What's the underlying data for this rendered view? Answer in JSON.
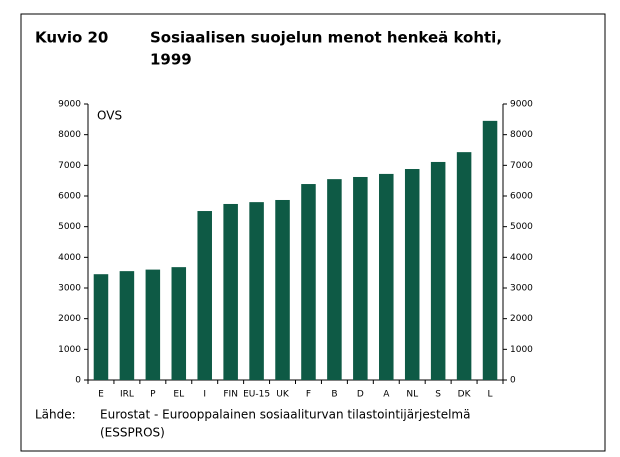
{
  "chart_data": {
    "type": "bar",
    "figure_label": "Kuvio 20",
    "title": [
      "Sosiaalisen suojelun menot henkeä kohti,",
      "1999"
    ],
    "y_label": "OVS",
    "categories": [
      "E",
      "IRL",
      "P",
      "EL",
      "I",
      "FIN",
      "EU-15",
      "UK",
      "F",
      "B",
      "D",
      "A",
      "NL",
      "S",
      "DK",
      "L"
    ],
    "values": [
      3450,
      3550,
      3600,
      3680,
      5510,
      5740,
      5800,
      5870,
      6390,
      6550,
      6620,
      6720,
      6880,
      7110,
      7430,
      8450
    ],
    "color": "#0e5a45",
    "ylim": [
      0,
      9000
    ],
    "yticks": [
      0,
      1000,
      2000,
      3000,
      4000,
      5000,
      6000,
      7000,
      8000,
      9000
    ],
    "y2lim": [
      0,
      9000
    ],
    "y2ticks": [
      0,
      1000,
      2000,
      3000,
      4000,
      5000,
      6000,
      7000,
      8000,
      9000
    ],
    "grid": false,
    "source_label": "Lähde:",
    "source": [
      "Eurostat - Eurooppalainen sosiaaliturvan tilastointijärjestelmä",
      "(ESSPROS)"
    ]
  }
}
